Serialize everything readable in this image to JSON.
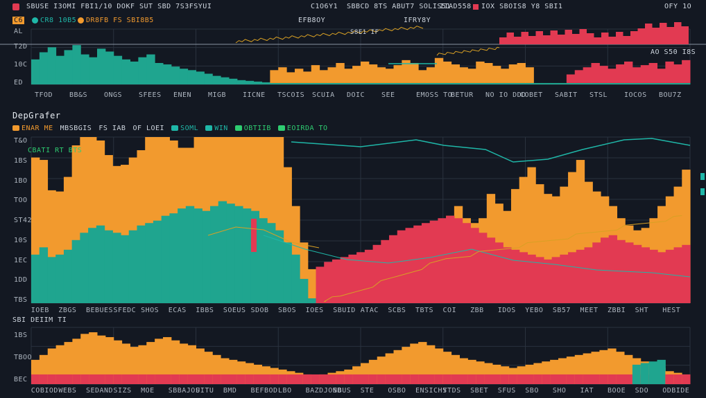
{
  "colors": {
    "background": "#131822",
    "grid": "#2a323e",
    "orange": "#f29a2e",
    "teal": "#1fa58f",
    "red": "#e23a52",
    "line_teal": "#1fb7a8",
    "line_gold": "#d8a024",
    "accent_green": "#2ecc71"
  },
  "topbar": {
    "left_label": "SBUSE I3OMI FBI1/10 DOKF SUT SBD 7S3FSYUI",
    "mid_label_1": "C1O6Y1",
    "mid_label_2": "SBBCD 8TS ABUT7 SOLIS51",
    "mid_label_3": "IIAD558",
    "right_label": "IOX SBOIS8 Y8 SBI1",
    "corner_label": "OFY 1O"
  },
  "top_panel": {
    "badge": "C6",
    "legend": [
      "CR8 10B5",
      "DR8FB FS SBI8B5"
    ],
    "annotation_1": "EFB8OY",
    "annotation_2": "S8E1 IF",
    "annotation_3": "IFRY8Y",
    "annotation_4": "AO S50 I8S",
    "y_ticks": [
      "T2D",
      "10C",
      "ED",
      "AL"
    ],
    "x_ticks": [
      "TFOD",
      "BB&S",
      "ONGS",
      "SFEES",
      "ENEN",
      "MIGB",
      "IICNE",
      "TSCOIS",
      "SCUIA",
      "DOIC",
      "SEE",
      "EMOSS TO",
      "BETUR",
      "NO IO DDD",
      "COBET",
      "SABIT",
      "STSL",
      "IOCOS",
      "BOU7Z"
    ]
  },
  "main_panel": {
    "title": "DepGrafer",
    "legend": [
      {
        "label": "ENAR ME",
        "color": "orange"
      },
      {
        "label": "MBSBGIS",
        "color": "none"
      },
      {
        "label": "FS IAB",
        "color": "none"
      },
      {
        "label": "OF LOEI",
        "color": "none"
      },
      {
        "label": "SOML",
        "color": "teal"
      },
      {
        "label": "WIN",
        "color": "teal"
      },
      {
        "label": "OBTIIB",
        "color": "green"
      },
      {
        "label": "EOIRDA TO",
        "color": "green"
      }
    ],
    "inline_label": "CBATI RT BTS",
    "y_ticks": [
      "T&O",
      "1BS",
      "1BO",
      "TOO",
      "ST42",
      "10S",
      "1EC",
      "1DD",
      "TBS"
    ],
    "x_ticks": [
      "IOEB",
      "ZBGS",
      "BEBUES",
      "SFEDC",
      "SHOS",
      "ECAS",
      "IBBS",
      "SOEUS",
      "SDOB",
      "SBOS",
      "IOES",
      "SBUID",
      "ATAC",
      "SCBS",
      "TBTS",
      "COI",
      "ZBB",
      "IDOS",
      "YEBO",
      "SB57",
      "MEET",
      "ZBBI",
      "SHT",
      "HEST"
    ]
  },
  "bottom_panel": {
    "title": "SBI DEIIM TI",
    "y_ticks": [
      "1BS",
      "TBOO",
      "BEC"
    ],
    "x_ticks": [
      "COBIOD",
      "WEBS",
      "SEDAND",
      "SIZS",
      "MOE",
      "SBBAJOS",
      "UITU",
      "BMD",
      "BEFBOD",
      "LBO",
      "BAZDJOND",
      "SBUS",
      "STE",
      "OSBO",
      "ENSICHS",
      "YTDS",
      "SBET",
      "SFUS",
      "SBO",
      "SHO",
      "IAT",
      "BOOE",
      "SDO",
      "ODBIDE"
    ]
  },
  "chart_data": [
    {
      "type": "bar",
      "title": "",
      "series": [
        {
          "color": "teal",
          "values": [
            35,
            45,
            52,
            40,
            48,
            55,
            42,
            38,
            50,
            46,
            40,
            35,
            32,
            38,
            42,
            30,
            28,
            25,
            22,
            20,
            18,
            15,
            12,
            10,
            8,
            6,
            5,
            4,
            3,
            2,
            2,
            2,
            2,
            2,
            2,
            2,
            2,
            2,
            2,
            2,
            2,
            2,
            2,
            2,
            2,
            2,
            2,
            2,
            2,
            2,
            2,
            2,
            2,
            2,
            2,
            2,
            2,
            2,
            2,
            2,
            2,
            2,
            2,
            2,
            2,
            2,
            2,
            2,
            2,
            2,
            2,
            2,
            2,
            2,
            2,
            2,
            2,
            2,
            2,
            2
          ]
        },
        {
          "color": "orange",
          "values": [
            0,
            0,
            0,
            0,
            0,
            0,
            0,
            0,
            0,
            0,
            0,
            0,
            0,
            0,
            0,
            0,
            0,
            0,
            0,
            0,
            0,
            0,
            0,
            0,
            0,
            0,
            0,
            0,
            0,
            18,
            22,
            15,
            20,
            16,
            25,
            18,
            22,
            28,
            20,
            24,
            30,
            26,
            22,
            20,
            25,
            32,
            28,
            18,
            22,
            35,
            30,
            26,
            22,
            20,
            30,
            28,
            24,
            20,
            26,
            28,
            22,
            0,
            0,
            0,
            0,
            0,
            0,
            0,
            0,
            0,
            0,
            0,
            0,
            0,
            0,
            0,
            0,
            0,
            0,
            0
          ]
        },
        {
          "color": "red",
          "values": [
            0,
            0,
            0,
            0,
            0,
            0,
            0,
            0,
            0,
            0,
            0,
            0,
            0,
            0,
            0,
            0,
            0,
            0,
            0,
            0,
            0,
            0,
            0,
            0,
            0,
            0,
            0,
            0,
            0,
            0,
            0,
            0,
            0,
            0,
            0,
            0,
            0,
            0,
            0,
            0,
            0,
            0,
            0,
            0,
            0,
            0,
            0,
            0,
            0,
            0,
            0,
            0,
            0,
            0,
            0,
            0,
            0,
            0,
            0,
            0,
            0,
            0,
            0,
            0,
            0,
            12,
            18,
            22,
            28,
            24,
            20,
            26,
            30,
            22,
            25,
            28,
            20,
            30,
            26,
            32
          ]
        }
      ]
    },
    {
      "type": "area",
      "title": "",
      "series": [
        {
          "color": "orange",
          "values": [
            80,
            72,
            55,
            52,
            60,
            78,
            82,
            85,
            70,
            62,
            55,
            58,
            60,
            62,
            74,
            80,
            72,
            60,
            50,
            48,
            60,
            88,
            96,
            82,
            78,
            72,
            92,
            110,
            118,
            100,
            85,
            62,
            40,
            30,
            24,
            20,
            18,
            16,
            14,
            12,
            14,
            16,
            18,
            20,
            22,
            24,
            28,
            34,
            42,
            48,
            60,
            72,
            80,
            70,
            66,
            70,
            90,
            82,
            76,
            94,
            104,
            112,
            98,
            90,
            88,
            96,
            108,
            118,
            100,
            92,
            88,
            80,
            70,
            64,
            60,
            62,
            70,
            80,
            88,
            96,
            110
          ]
        },
        {
          "color": "teal",
          "values": [
            40,
            46,
            38,
            40,
            44,
            52,
            58,
            62,
            64,
            60,
            58,
            56,
            60,
            64,
            66,
            68,
            72,
            74,
            78,
            80,
            78,
            76,
            80,
            84,
            82,
            80,
            78,
            76,
            70,
            66,
            60,
            50,
            40,
            20,
            4,
            0,
            0,
            0,
            0,
            0,
            0,
            0,
            0,
            0,
            0,
            0,
            0,
            0,
            0,
            0,
            0,
            0,
            0,
            0,
            0,
            0,
            0,
            0,
            0,
            0,
            0,
            0,
            0,
            0,
            0,
            0,
            0,
            0,
            0,
            0,
            0,
            0,
            0,
            0,
            0,
            0,
            0,
            0,
            0,
            0,
            0
          ]
        },
        {
          "color": "red",
          "values": [
            0,
            0,
            0,
            0,
            0,
            0,
            0,
            0,
            0,
            0,
            0,
            0,
            0,
            0,
            0,
            0,
            0,
            0,
            0,
            0,
            0,
            0,
            0,
            0,
            0,
            0,
            0,
            0,
            0,
            0,
            0,
            0,
            0,
            0,
            0,
            30,
            34,
            36,
            38,
            40,
            42,
            44,
            48,
            52,
            56,
            60,
            62,
            64,
            66,
            68,
            70,
            72,
            70,
            66,
            62,
            58,
            54,
            50,
            46,
            44,
            42,
            40,
            38,
            36,
            38,
            40,
            42,
            44,
            46,
            50,
            54,
            56,
            52,
            50,
            48,
            46,
            44,
            42,
            44,
            46,
            48
          ]
        },
        {
          "color": "line_teal",
          "values": [
            160,
            158,
            162,
            160,
            164,
            166,
            168,
            165,
            170,
            168,
            172,
            170,
            174,
            176,
            178,
            175,
            180,
            178,
            176,
            174,
            172,
            168,
            164,
            160,
            156,
            152,
            148,
            146,
            150,
            156,
            160,
            164,
            168,
            170,
            172,
            174,
            176,
            178,
            180,
            182,
            178,
            176,
            180,
            182,
            186,
            188,
            190,
            192,
            195,
            198,
            200,
            202,
            205,
            208,
            210,
            212,
            214,
            216,
            220,
            222,
            224,
            226,
            228,
            232,
            230,
            228,
            226,
            224,
            222,
            220,
            224,
            228,
            232,
            236,
            240,
            244,
            246,
            244,
            242,
            240,
            238
          ]
        },
        {
          "color": "line_gold",
          "values": [
            0,
            0,
            0,
            0,
            0,
            0,
            0,
            0,
            0,
            0,
            0,
            0,
            0,
            0,
            0,
            0,
            0,
            0,
            0,
            0,
            0,
            0,
            0,
            0,
            0,
            0,
            0,
            0,
            0,
            0,
            0,
            0,
            0,
            0,
            0,
            0,
            2,
            4,
            6,
            10,
            14,
            18,
            22,
            26,
            30,
            34,
            38,
            42,
            46,
            50,
            54,
            58,
            60,
            62,
            64,
            66,
            68,
            70,
            72,
            74,
            76,
            78,
            80,
            82,
            84,
            86,
            88,
            90,
            92,
            94,
            96,
            98,
            100,
            102,
            104,
            106,
            108,
            110,
            112,
            114,
            116
          ]
        }
      ]
    },
    {
      "type": "bar",
      "title": "",
      "series": [
        {
          "color": "orange",
          "values": [
            30,
            36,
            44,
            48,
            52,
            56,
            62,
            64,
            60,
            58,
            54,
            50,
            46,
            48,
            52,
            56,
            58,
            54,
            50,
            48,
            44,
            40,
            36,
            32,
            30,
            28,
            26,
            24,
            22,
            20,
            18,
            16,
            14,
            12,
            10,
            12,
            14,
            16,
            18,
            22,
            26,
            30,
            34,
            38,
            42,
            46,
            50,
            52,
            48,
            44,
            40,
            36,
            32,
            30,
            28,
            26,
            24,
            22,
            20,
            22,
            24,
            26,
            28,
            30,
            32,
            34,
            36,
            38,
            40,
            42,
            44,
            40,
            36,
            32,
            28,
            24,
            20,
            16,
            14,
            12
          ]
        },
        {
          "color": "red",
          "values": [
            12,
            12,
            12,
            12,
            12,
            12,
            12,
            12,
            12,
            12,
            12,
            12,
            12,
            12,
            12,
            12,
            12,
            12,
            12,
            12,
            12,
            12,
            12,
            12,
            12,
            12,
            12,
            12,
            12,
            12,
            12,
            12,
            12,
            12,
            12,
            12,
            12,
            12,
            12,
            12,
            12,
            12,
            12,
            12,
            12,
            12,
            12,
            12,
            12,
            12,
            12,
            12,
            12,
            12,
            12,
            12,
            12,
            12,
            12,
            12,
            12,
            12,
            12,
            12,
            12,
            12,
            12,
            12,
            12,
            12,
            12,
            12,
            12,
            12,
            12,
            12,
            12,
            12,
            12,
            12
          ]
        },
        {
          "color": "teal",
          "values": [
            0,
            0,
            0,
            0,
            0,
            0,
            0,
            0,
            0,
            0,
            0,
            0,
            0,
            0,
            0,
            0,
            0,
            0,
            0,
            0,
            0,
            0,
            0,
            0,
            0,
            0,
            0,
            0,
            0,
            0,
            0,
            0,
            0,
            0,
            0,
            0,
            0,
            0,
            0,
            0,
            0,
            0,
            0,
            0,
            0,
            0,
            0,
            0,
            0,
            0,
            0,
            0,
            0,
            0,
            0,
            0,
            0,
            0,
            0,
            0,
            0,
            0,
            0,
            0,
            0,
            0,
            0,
            0,
            0,
            0,
            0,
            0,
            0,
            24,
            26,
            28,
            30,
            0,
            0,
            0
          ]
        }
      ]
    }
  ]
}
